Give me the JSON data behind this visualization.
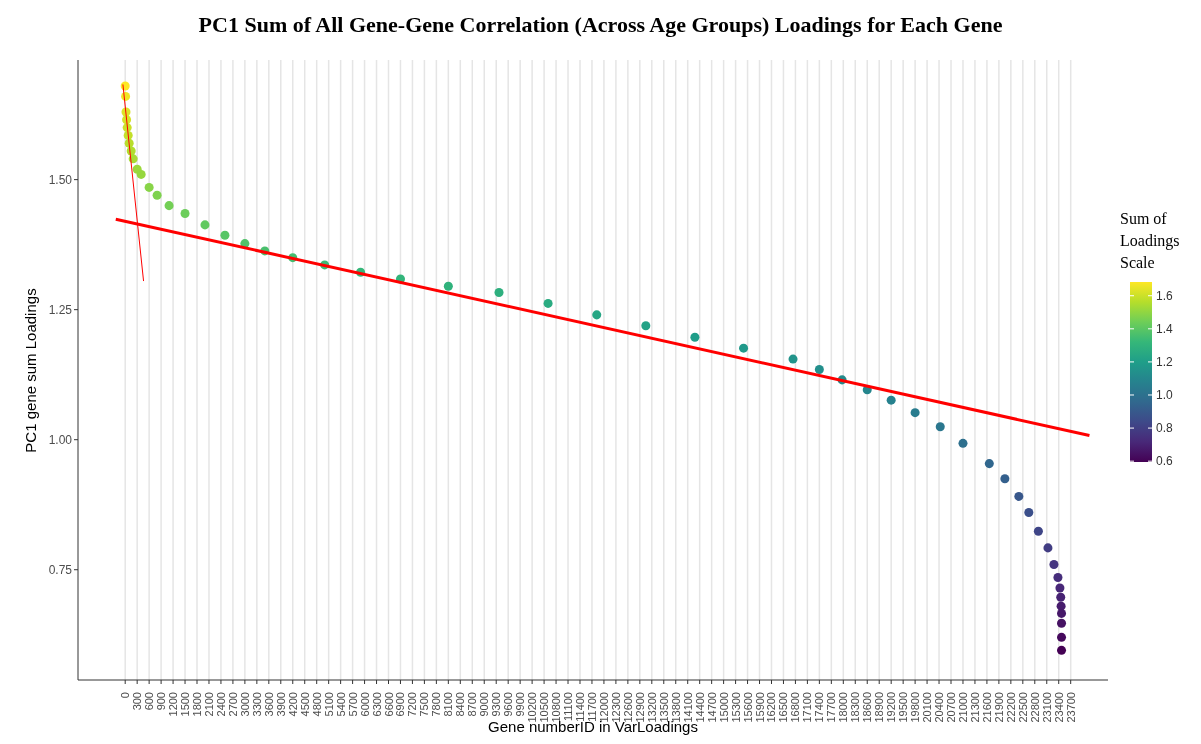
{
  "chart_data": {
    "type": "scatter",
    "title": "PC1 Sum of All Gene-Gene Correlation (Across Age Groups) Loadings for Each Gene",
    "xlabel": "Gene numberID in VarLoadings",
    "ylabel": "PC1 gene sum Loadings",
    "clabel": "Sum of Loadings Scale",
    "series": [
      {
        "marker": "circle",
        "colors": [
          "#fde725",
          "#efe526",
          "#dde328",
          "#d5e228",
          "#cbe129",
          "#c3e02a",
          "#b9de2b",
          "#b1dd2e",
          "#a8db33",
          "#9cd83b",
          "#96d73e",
          "#88d448",
          "#7ed24e",
          "#73cf55",
          "#6bcd5a",
          "#61c960",
          "#57c565",
          "#50c269",
          "#49bf6d",
          "#43bd71",
          "#3cba75",
          "#35b779",
          "#33b57b",
          "#30b27c",
          "#2eaf7e",
          "#2aab81",
          "#26a684",
          "#23a286",
          "#1f9d89",
          "#20998a",
          "#22948b",
          "#238f8c",
          "#248b8c",
          "#25868d",
          "#26818e",
          "#287c8e",
          "#2b778e",
          "#2e708e",
          "#31678e",
          "#34608d",
          "#38578b",
          "#3b4f8a",
          "#3f4587",
          "#423d83",
          "#44347e",
          "#462d7b",
          "#482778",
          "#472273",
          "#471c6d",
          "#461869",
          "#461263",
          "#45095c",
          "#440154"
        ],
        "x": [
          0,
          10,
          20,
          35,
          50,
          75,
          100,
          150,
          200,
          300,
          400,
          600,
          800,
          1100,
          1500,
          2000,
          2500,
          3000,
          3500,
          4200,
          5000,
          5900,
          6900,
          8100,
          9370,
          10600,
          11820,
          13050,
          14280,
          15500,
          16740,
          17400,
          17970,
          18600,
          19200,
          19800,
          20430,
          21000,
          21660,
          22050,
          22400,
          22650,
          22890,
          23130,
          23280,
          23380,
          23430,
          23450,
          23460,
          23470,
          23470,
          23470,
          23470
        ],
        "values": [
          1.68,
          1.66,
          1.63,
          1.615,
          1.6,
          1.585,
          1.57,
          1.555,
          1.54,
          1.52,
          1.51,
          1.485,
          1.47,
          1.45,
          1.435,
          1.413,
          1.393,
          1.377,
          1.363,
          1.35,
          1.336,
          1.322,
          1.309,
          1.295,
          1.283,
          1.262,
          1.24,
          1.219,
          1.197,
          1.176,
          1.155,
          1.135,
          1.115,
          1.096,
          1.076,
          1.052,
          1.025,
          0.993,
          0.954,
          0.925,
          0.891,
          0.86,
          0.824,
          0.792,
          0.76,
          0.735,
          0.715,
          0.697,
          0.68,
          0.666,
          0.647,
          0.62,
          0.595
        ]
      },
      {
        "type": "line",
        "color": "#ff0000",
        "x": [
          -236,
          24170
        ],
        "values": [
          1.424,
          1.008
        ]
      },
      {
        "type": "line",
        "color": "#ff0000",
        "x": [
          -57,
          460
        ],
        "values": [
          1.683,
          1.305
        ]
      }
    ],
    "xlim": [
      -1183,
      24635
    ],
    "ylim": [
      0.538,
      1.73
    ],
    "xticks": [
      0,
      300,
      600,
      900,
      1200,
      1500,
      1800,
      2100,
      2400,
      2700,
      3000,
      3300,
      3600,
      3900,
      4200,
      4500,
      4800,
      5100,
      5400,
      5700,
      6000,
      6300,
      6600,
      6900,
      7200,
      7500,
      7800,
      8100,
      8400,
      8700,
      9000,
      9300,
      9600,
      9900,
      10200,
      10500,
      10800,
      11100,
      11400,
      11700,
      12000,
      12300,
      12600,
      12900,
      13200,
      13500,
      13800,
      14100,
      14400,
      14700,
      15000,
      15300,
      15600,
      15900,
      16200,
      16500,
      16800,
      17100,
      17400,
      17700,
      18000,
      18300,
      18600,
      18900,
      19200,
      19500,
      19800,
      20100,
      20400,
      20700,
      21000,
      21300,
      21600,
      21900,
      22200,
      22500,
      22800,
      23100,
      23400,
      23700
    ],
    "yticks": [
      {
        "value": 0.75,
        "label": "0.75"
      },
      {
        "value": 1.0,
        "label": "1.00"
      },
      {
        "value": 1.25,
        "label": "1.25"
      },
      {
        "value": 1.5,
        "label": "1.50"
      }
    ],
    "clim": [
      0.595,
      1.683
    ],
    "cticks": [
      {
        "value": 0.6,
        "label": "0.6"
      },
      {
        "value": 0.8,
        "label": "0.8"
      },
      {
        "value": 1,
        "label": "1.0"
      },
      {
        "value": 1.2,
        "label": "1.2"
      },
      {
        "value": 1.4,
        "label": "1.4"
      },
      {
        "value": 1.6,
        "label": "1.6"
      }
    ],
    "grid": "x"
  }
}
